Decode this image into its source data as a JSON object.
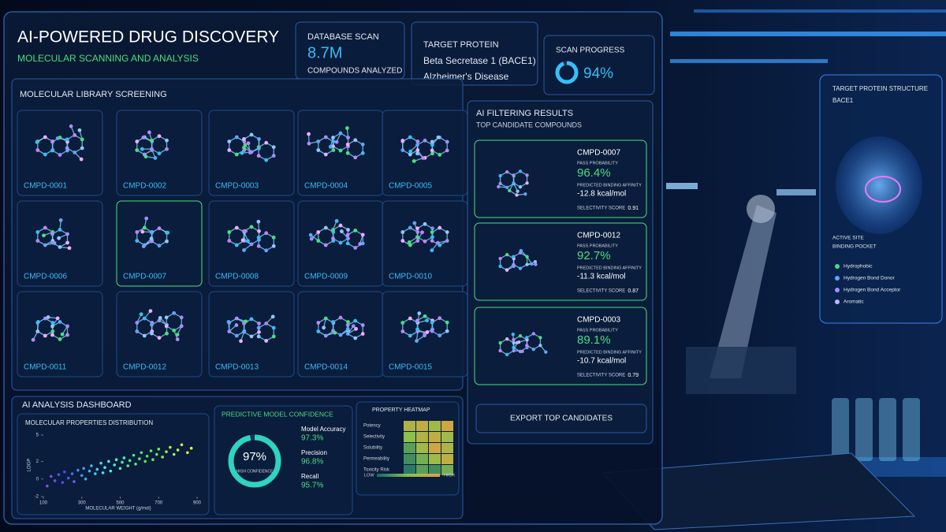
{
  "header": {
    "title": "AI-POWERED DRUG DISCOVERY",
    "subtitle": "MOLECULAR SCANNING AND ANALYSIS"
  },
  "stats": {
    "database": {
      "label": "DATABASE SCAN",
      "value": "8.7M",
      "caption": "COMPOUNDS ANALYZED"
    },
    "target": {
      "label": "TARGET PROTEIN",
      "protein": "Beta Secretase 1 (BACE1)",
      "disease": "Alzheimer's Disease"
    },
    "progress": {
      "label": "SCAN PROGRESS",
      "value": 94,
      "value_label": "94%"
    }
  },
  "library": {
    "title": "MOLECULAR LIBRARY SCREENING",
    "compounds": [
      "CMPD-0001",
      "CMPD-0002",
      "CMPD-0003",
      "CMPD-0004",
      "CMPD-0005",
      "CMPD-0006",
      "CMPD-0007",
      "CMPD-0008",
      "CMPD-0009",
      "CMPD-0010",
      "CMPD-0011",
      "CMPD-0012",
      "CMPD-0013",
      "CMPD-0014",
      "CMPD-0015"
    ]
  },
  "filtering": {
    "title": "AI FILTERING RESULTS",
    "subtitle": "TOP CANDIDATE COMPOUNDS",
    "candidates": [
      {
        "id": "CMPD-0007",
        "pass_label": "PASS PROBABILITY",
        "pass": "96.4%",
        "affinity_label": "PREDICTED BINDING AFFINITY",
        "affinity": "-12.8 kcal/mol",
        "selectivity_label": "SELECTIVITY SCORE",
        "selectivity": "0.91"
      },
      {
        "id": "CMPD-0012",
        "pass_label": "PASS PROBABILITY",
        "pass": "92.7%",
        "affinity_label": "PREDICTED BINDING AFFINITY",
        "affinity": "-11.3 kcal/mol",
        "selectivity_label": "SELECTIVITY SCORE",
        "selectivity": "0.87"
      },
      {
        "id": "CMPD-0003",
        "pass_label": "PASS PROBABILITY",
        "pass": "89.1%",
        "affinity_label": "PREDICTED BINDING AFFINITY",
        "affinity": "-10.7 kcal/mol",
        "selectivity_label": "SELECTIVITY SCORE",
        "selectivity": "0.79"
      }
    ],
    "export": "EXPORT TOP CANDIDATES"
  },
  "dashboard": {
    "title": "AI ANALYSIS DASHBOARD",
    "scatter": {
      "type": "scatter",
      "title": "MOLECULAR PROPERTIES DISTRIBUTION",
      "x_label": "MOLECULAR WEIGHT (g/mol)",
      "y_label": "LOGP",
      "x": [
        120,
        140,
        160,
        180,
        200,
        210,
        230,
        250,
        260,
        280,
        300,
        310,
        320,
        340,
        350,
        370,
        380,
        400,
        410,
        420,
        440,
        450,
        470,
        480,
        500,
        510,
        520,
        540,
        550,
        570,
        580,
        600,
        610,
        630,
        640,
        660,
        670,
        690,
        700,
        720,
        740,
        760,
        780,
        800,
        820,
        850,
        870
      ],
      "y": [
        -0.8,
        0.3,
        -0.2,
        0.5,
        -0.4,
        0.8,
        0.1,
        0.6,
        -0.3,
        1.0,
        0.4,
        1.2,
        0.0,
        0.9,
        1.5,
        0.6,
        1.1,
        1.8,
        0.7,
        1.3,
        2.0,
        0.9,
        1.6,
        2.2,
        1.2,
        1.9,
        2.4,
        1.5,
        2.1,
        2.7,
        1.7,
        2.3,
        3.0,
        2.0,
        2.6,
        3.2,
        2.2,
        2.8,
        3.4,
        2.5,
        3.1,
        3.6,
        2.8,
        3.3,
        3.9,
        3.0,
        3.5
      ],
      "xlim": [
        100,
        900
      ],
      "ylim": [
        -2,
        5
      ],
      "xticks": [
        100,
        300,
        500,
        700,
        900
      ],
      "yticks": [
        -2,
        0,
        2,
        5
      ]
    },
    "confidence": {
      "title": "PREDICTIVE MODEL CONFIDENCE",
      "value": 97,
      "value_label": "97%",
      "caption": "HIGH CONFIDENCE",
      "metrics": [
        {
          "name": "Model Accuracy",
          "value": "97.3%"
        },
        {
          "name": "Precision",
          "value": "96.8%"
        },
        {
          "name": "Recall",
          "value": "95.7%"
        }
      ]
    },
    "heatmap": {
      "title": "PROPERTY HEATMAP",
      "rows": [
        "Potency",
        "Selectivity",
        "Solubility",
        "Permeability",
        "Toxicity Risk"
      ],
      "values": [
        [
          0.7,
          0.8,
          0.6,
          0.9
        ],
        [
          0.5,
          0.7,
          0.8,
          0.6
        ],
        [
          0.3,
          0.6,
          0.9,
          0.7
        ],
        [
          0.2,
          0.4,
          0.6,
          0.8
        ],
        [
          0.1,
          0.3,
          0.2,
          0.4
        ]
      ],
      "low_label": "LOW",
      "high_label": "HIGH"
    }
  },
  "protein": {
    "title": "TARGET PROTEIN STRUCTURE",
    "name": "BACE1",
    "site": "ACTIVE SITE",
    "pocket": "BINDING POCKET",
    "legend": [
      {
        "name": "Hydrophobic",
        "color": "#4ade80"
      },
      {
        "name": "Hydrogen Bond Donor",
        "color": "#60a5fa"
      },
      {
        "name": "Hydrogen Bond Acceptor",
        "color": "#a78bfa"
      },
      {
        "name": "Aromatic",
        "color": "#c4b5fd"
      }
    ]
  }
}
